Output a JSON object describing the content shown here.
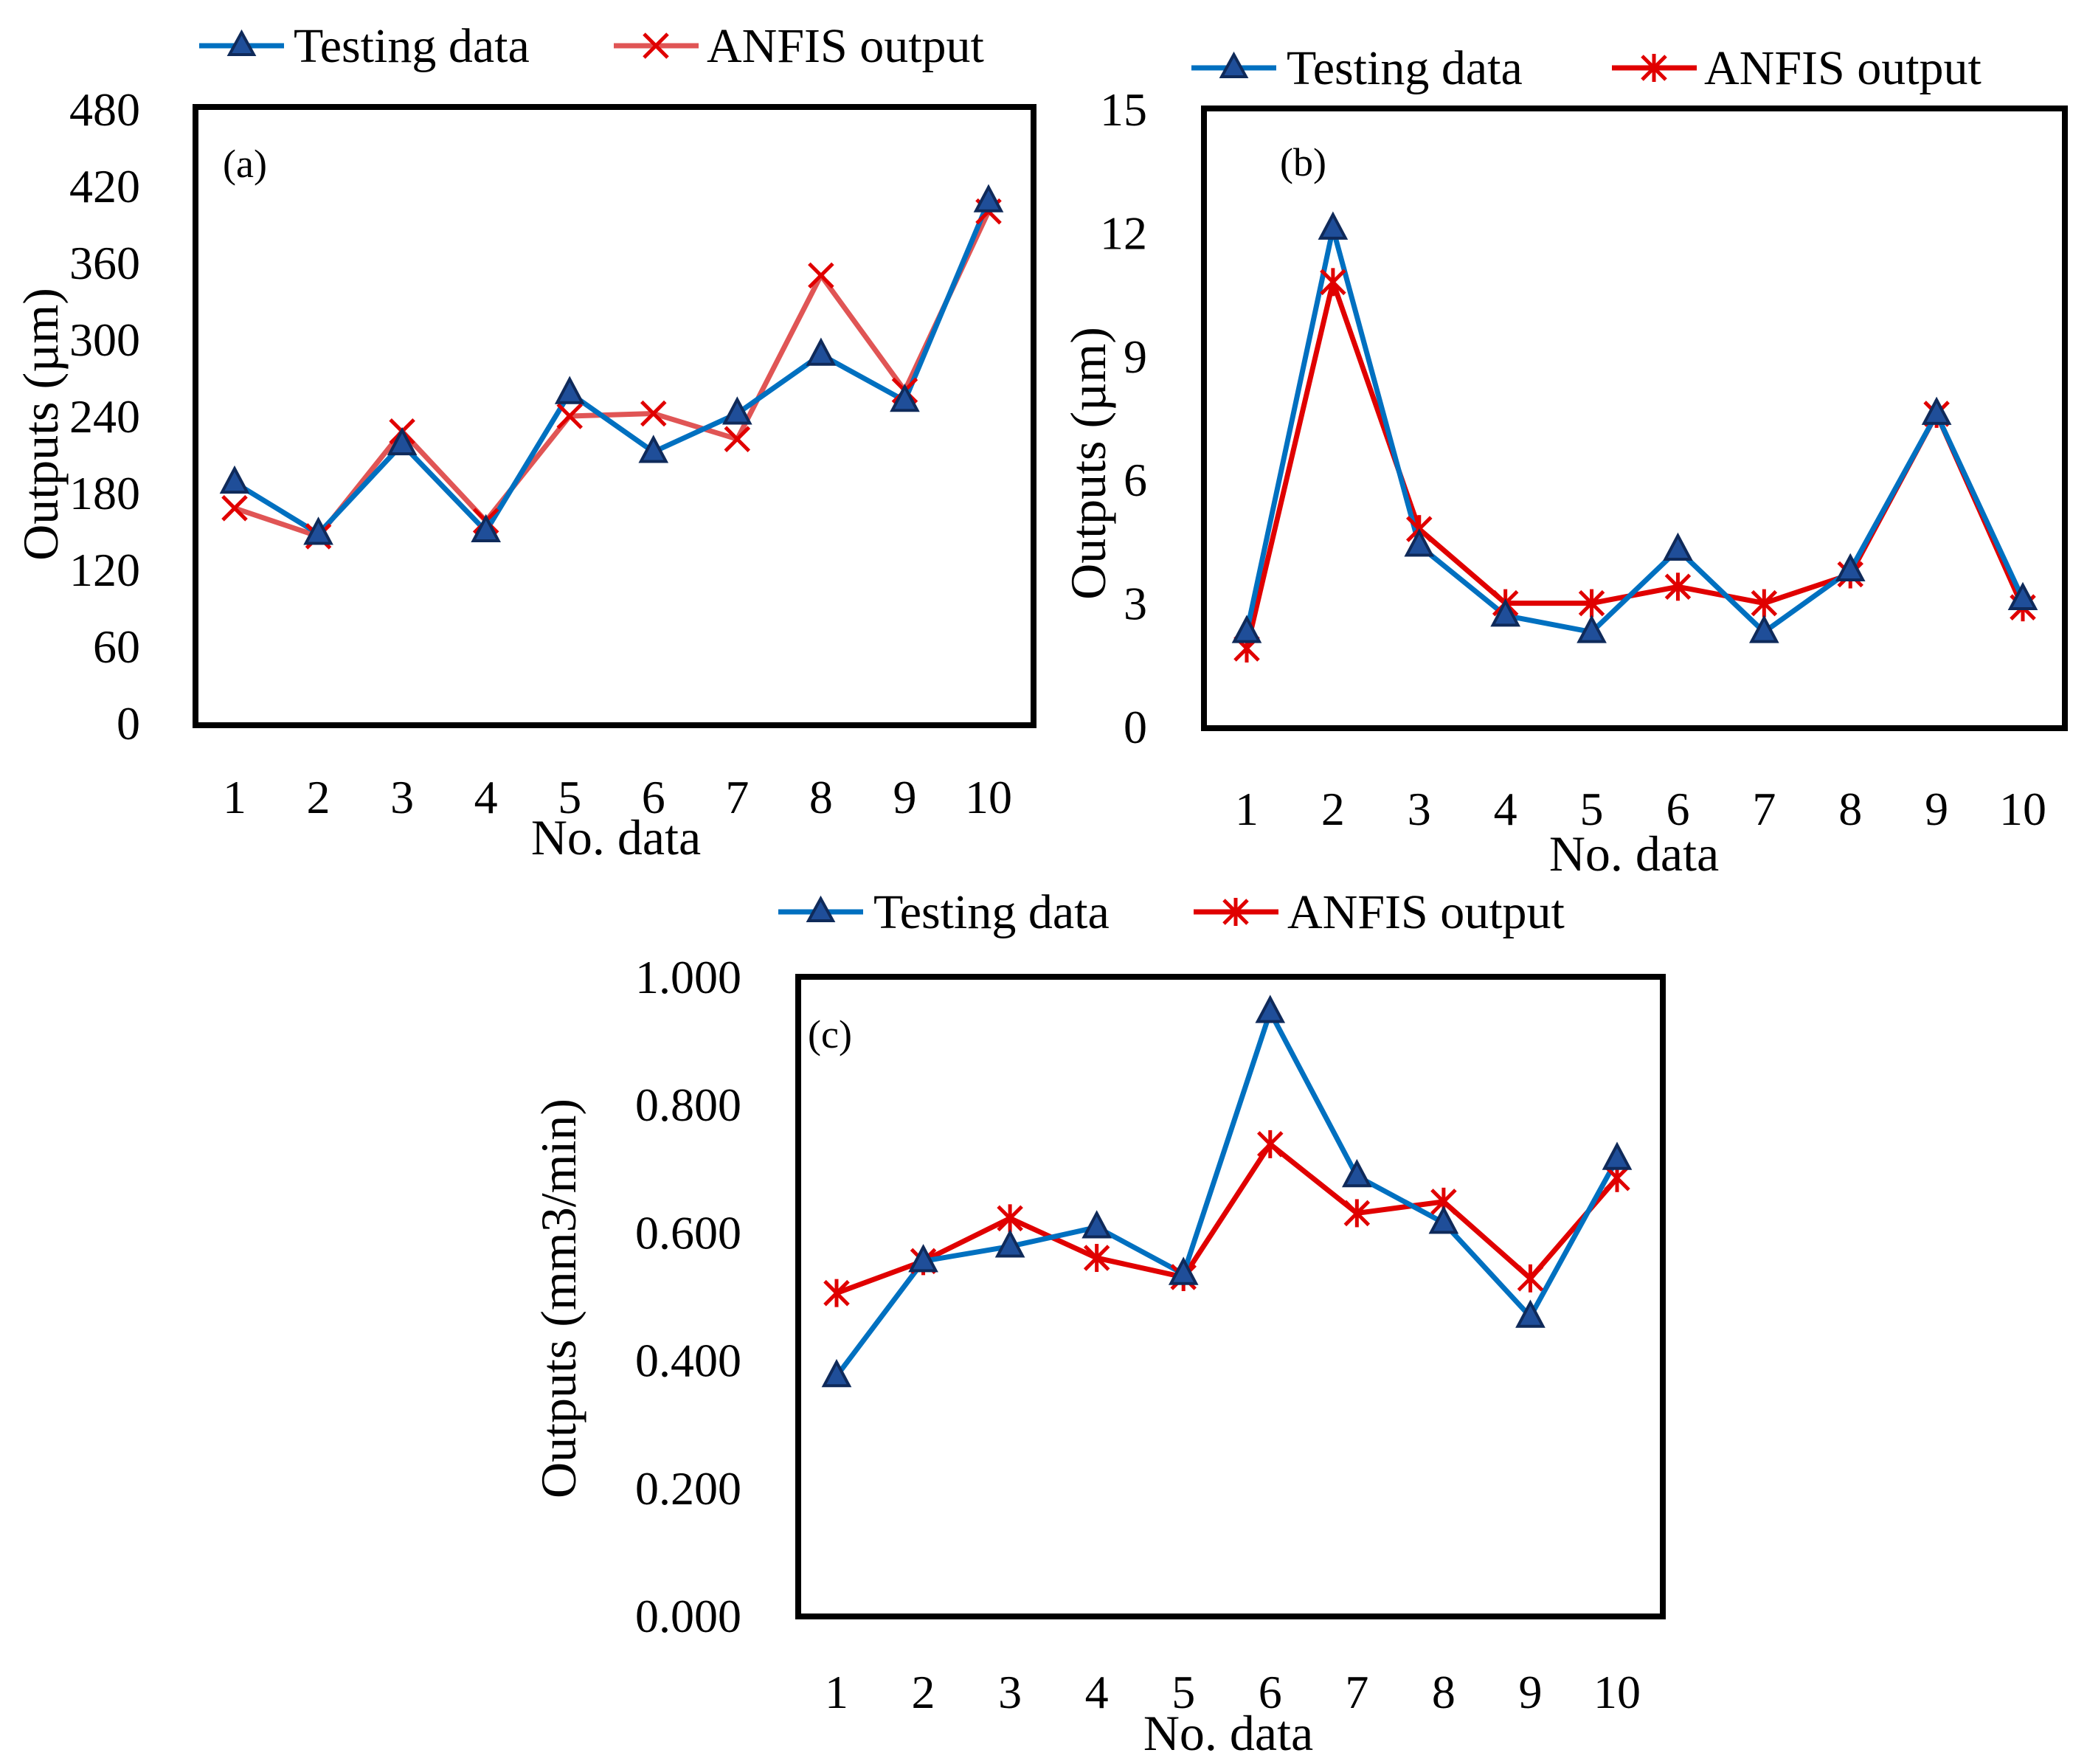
{
  "chart_data": [
    {
      "id": "a",
      "type": "line",
      "panel_label": "(a)",
      "xlabel": "No. data",
      "ylabel": "Outputs (µm)",
      "categories": [
        "1",
        "2",
        "3",
        "4",
        "5",
        "6",
        "7",
        "8",
        "9",
        "10"
      ],
      "ylim": [
        0,
        480
      ],
      "yticks": [
        "0",
        "60",
        "120",
        "180",
        "240",
        "300",
        "360",
        "420",
        "480"
      ],
      "legend_position": "top",
      "series": [
        {
          "name": "Testing data",
          "marker": "triangle",
          "color": "#0070C0",
          "values": [
            188,
            148,
            218,
            150,
            258,
            212,
            242,
            288,
            252,
            408
          ]
        },
        {
          "name": "ANFIS output",
          "marker": "x",
          "color": "#E05555",
          "values": [
            168,
            146,
            228,
            158,
            240,
            242,
            222,
            350,
            260,
            400
          ]
        }
      ]
    },
    {
      "id": "b",
      "type": "line",
      "panel_label": "(b)",
      "xlabel": "No. data",
      "ylabel": "Outputs (µm)",
      "categories": [
        "1",
        "2",
        "3",
        "4",
        "5",
        "6",
        "7",
        "8",
        "9",
        "10"
      ],
      "ylim": [
        0,
        15
      ],
      "yticks": [
        "0",
        "3",
        "6",
        "9",
        "12",
        "15"
      ],
      "legend_position": "top",
      "series": [
        {
          "name": "Testing data",
          "marker": "triangle",
          "color": "#0070C0",
          "values": [
            2.3,
            12.1,
            4.4,
            2.7,
            2.3,
            4.3,
            2.3,
            3.8,
            7.6,
            3.1
          ]
        },
        {
          "name": "ANFIS output",
          "marker": "asterisk",
          "color": "#E00000",
          "values": [
            1.9,
            10.8,
            4.8,
            3.0,
            3.0,
            3.4,
            3.0,
            3.7,
            7.6,
            2.9
          ]
        }
      ]
    },
    {
      "id": "c",
      "type": "line",
      "panel_label": "(c)",
      "xlabel": "No. data",
      "ylabel": "Outputs (mm3/min)",
      "categories": [
        "1",
        "2",
        "3",
        "4",
        "5",
        "6",
        "7",
        "8",
        "9",
        "10"
      ],
      "ylim": [
        0,
        1
      ],
      "yticks": [
        "0.000",
        "0.200",
        "0.400",
        "0.600",
        "0.800",
        "1.000"
      ],
      "legend_position": "top",
      "series": [
        {
          "name": "Testing data",
          "marker": "triangle",
          "color": "#0070C0",
          "values": [
            0.375,
            0.555,
            0.578,
            0.608,
            0.535,
            0.945,
            0.688,
            0.615,
            0.468,
            0.715
          ]
        },
        {
          "name": "ANFIS output",
          "marker": "asterisk",
          "color": "#E00000",
          "values": [
            0.505,
            0.555,
            0.622,
            0.56,
            0.53,
            0.738,
            0.63,
            0.648,
            0.528,
            0.685
          ]
        }
      ]
    }
  ]
}
